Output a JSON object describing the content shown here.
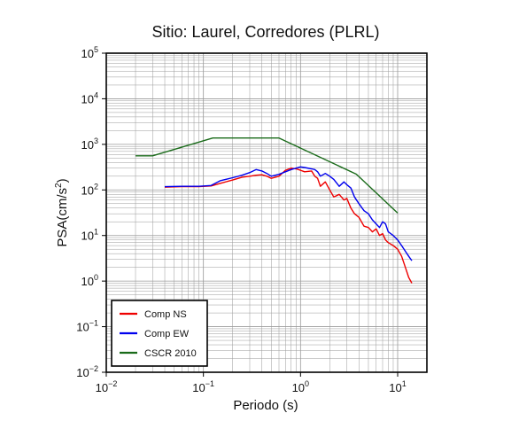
{
  "chart_data": {
    "type": "line",
    "title": "Sitio: Laurel, Corredores (PLRL)",
    "xlabel": "Periodo (s)",
    "ylabel": {
      "base": "PSA(cm/s",
      "sup": "2",
      "end": ")"
    },
    "xscale": "log",
    "yscale": "log",
    "xlim": [
      0.01,
      20
    ],
    "ylim": [
      0.01,
      100000
    ],
    "grid": true,
    "legend_position": "bottom-left",
    "x_ticks": [
      {
        "base": "10",
        "exp": "−2"
      },
      {
        "base": "10",
        "exp": "−1"
      },
      {
        "base": "10",
        "exp": "0"
      },
      {
        "base": "10",
        "exp": "1"
      }
    ],
    "y_ticks": [
      {
        "base": "10",
        "exp": "−2"
      },
      {
        "base": "10",
        "exp": "−1"
      },
      {
        "base": "10",
        "exp": "0"
      },
      {
        "base": "10",
        "exp": "1"
      },
      {
        "base": "10",
        "exp": "2"
      },
      {
        "base": "10",
        "exp": "3"
      },
      {
        "base": "10",
        "exp": "4"
      },
      {
        "base": "10",
        "exp": "5"
      }
    ],
    "series": [
      {
        "name": "Comp NS",
        "color": "#ee0000",
        "x": [
          0.04,
          0.06,
          0.09,
          0.12,
          0.15,
          0.2,
          0.25,
          0.3,
          0.35,
          0.4,
          0.45,
          0.5,
          0.6,
          0.7,
          0.8,
          0.9,
          1.0,
          1.1,
          1.3,
          1.4,
          1.5,
          1.6,
          1.8,
          2.0,
          2.2,
          2.5,
          2.8,
          3.0,
          3.3,
          3.6,
          4.0,
          4.5,
          5.0,
          5.5,
          6.0,
          6.5,
          7.0,
          7.5,
          8.0,
          9.0,
          10.0,
          11.0,
          12.0,
          13.0,
          14.0
        ],
        "y": [
          115,
          118,
          118,
          122,
          140,
          165,
          190,
          200,
          210,
          215,
          200,
          180,
          200,
          270,
          300,
          290,
          270,
          250,
          260,
          200,
          180,
          120,
          150,
          100,
          70,
          80,
          60,
          65,
          40,
          30,
          25,
          16,
          15,
          12,
          14,
          10,
          11,
          8,
          7,
          6,
          5,
          3.5,
          2,
          1.2,
          0.9
        ]
      },
      {
        "name": "Comp EW",
        "color": "#0000ee",
        "x": [
          0.04,
          0.06,
          0.09,
          0.12,
          0.15,
          0.2,
          0.25,
          0.3,
          0.35,
          0.4,
          0.45,
          0.5,
          0.6,
          0.7,
          0.8,
          0.9,
          1.0,
          1.1,
          1.3,
          1.4,
          1.5,
          1.6,
          1.8,
          2.0,
          2.2,
          2.5,
          2.8,
          3.0,
          3.3,
          3.6,
          4.0,
          4.5,
          5.0,
          5.5,
          6.0,
          6.5,
          7.0,
          7.5,
          8.0,
          9.0,
          10.0,
          11.0,
          12.0,
          13.0,
          14.0
        ],
        "y": [
          118,
          120,
          120,
          125,
          160,
          185,
          210,
          240,
          280,
          260,
          230,
          200,
          220,
          250,
          280,
          300,
          320,
          310,
          290,
          280,
          250,
          200,
          230,
          200,
          170,
          120,
          150,
          130,
          110,
          70,
          50,
          35,
          30,
          22,
          18,
          15,
          20,
          18,
          12,
          10,
          8,
          6,
          4.5,
          3.5,
          2.8
        ]
      },
      {
        "name": "CSCR 2010",
        "color": "#1a6b1a",
        "x": [
          0.02,
          0.03,
          0.125,
          0.6,
          3.75,
          10.0
        ],
        "y": [
          560,
          560,
          1375,
          1375,
          222,
          31
        ]
      }
    ]
  }
}
